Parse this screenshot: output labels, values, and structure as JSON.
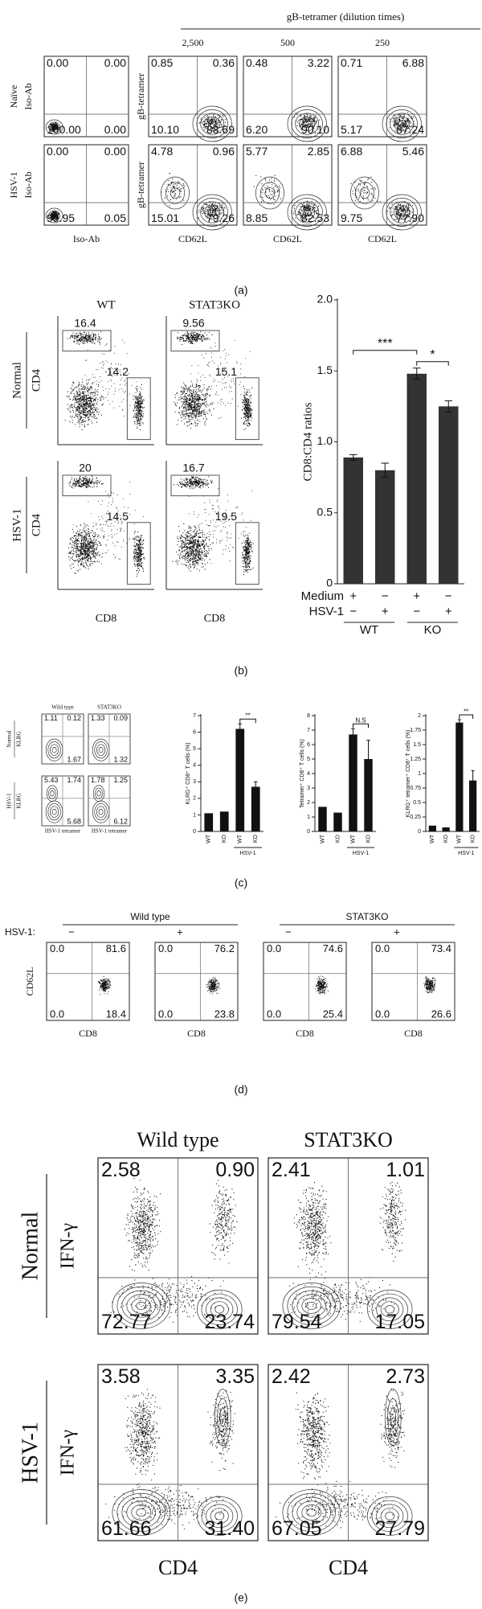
{
  "panel_a": {
    "header": "gB-tetramer (dilution times)",
    "dilutions": [
      "2,500",
      "500",
      "250"
    ],
    "row_labels": [
      [
        "Naïve",
        "Iso-Ab"
      ],
      [
        "HSV-1",
        "Iso-Ab"
      ]
    ],
    "y_labels": [
      "gB-tetramer",
      "gB-tetramer"
    ],
    "x_labels": [
      "Iso-Ab",
      "CD62L",
      "CD62L",
      "CD62L"
    ],
    "plots": [
      [
        [
          "0.00",
          "0.00",
          "100.00",
          "0.00"
        ],
        [
          "0.85",
          "0.36",
          "10.10",
          "88.69"
        ],
        [
          "0.48",
          "3.22",
          "6.20",
          "90.10"
        ],
        [
          "0.71",
          "6.88",
          "5.17",
          "87.24"
        ]
      ],
      [
        [
          "0.00",
          "0.00",
          "99.95",
          "0.05"
        ],
        [
          "4.78",
          "0.96",
          "15.01",
          "79.26"
        ],
        [
          "5.77",
          "2.85",
          "8.85",
          "82.53"
        ],
        [
          "6.88",
          "5.46",
          "9.75",
          "77.90"
        ]
      ]
    ],
    "caption": "(a)"
  },
  "panel_b": {
    "columns": [
      "WT",
      "STAT3KO"
    ],
    "row_labels": [
      [
        "Normal",
        "CD4"
      ],
      [
        "HSV-1",
        "CD4"
      ]
    ],
    "x_labels": [
      "CD8",
      "CD8"
    ],
    "gates": [
      [
        [
          "16.4",
          "14.2"
        ],
        [
          "9.56",
          "15.1"
        ]
      ],
      [
        [
          "20",
          "14.5"
        ],
        [
          "16.7",
          "19.5"
        ]
      ]
    ],
    "caption": "(b)"
  },
  "panel_c": {
    "columns": [
      "Wild type",
      "STAT3KO"
    ],
    "row_labels": [
      [
        "Normal",
        "KLRG"
      ],
      [
        "HSV-1",
        "KLRG"
      ]
    ],
    "x_labels": [
      "HSV-1 tetramer",
      "HSV-1 tetramer"
    ],
    "plots": [
      [
        [
          "1.11",
          "0.12",
          "1.67"
        ],
        [
          "1.33",
          "0.09",
          "1.32"
        ]
      ],
      [
        [
          "5.43",
          "1.74",
          "5.68"
        ],
        [
          "1.78",
          "1.25",
          "6.12"
        ]
      ]
    ],
    "caption": "(c)"
  },
  "panel_d": {
    "prefix": "HSV-1:",
    "groups": [
      "Wild type",
      "STAT3KO"
    ],
    "signs": [
      "−",
      "+",
      "−",
      "+"
    ],
    "y_label": "CD62L",
    "x_labels": [
      "CD8",
      "CD8",
      "CD8",
      "CD8"
    ],
    "plots": [
      [
        "0.0",
        "81.6",
        "0.0",
        "18.4"
      ],
      [
        "0.0",
        "76.2",
        "0.0",
        "23.8"
      ],
      [
        "0.0",
        "74.6",
        "0.0",
        "25.4"
      ],
      [
        "0.0",
        "73.4",
        "0.0",
        "26.6"
      ]
    ],
    "caption": "(d)"
  },
  "panel_e": {
    "columns": [
      "Wild type",
      "STAT3KO"
    ],
    "row_labels": [
      [
        "Normal",
        "IFN-γ"
      ],
      [
        "HSV-1",
        "IFN-γ"
      ]
    ],
    "x_labels": [
      "CD4",
      "CD4"
    ],
    "plots": [
      [
        [
          "2.58",
          "0.90",
          "72.77",
          "23.74"
        ],
        [
          "2.41",
          "1.01",
          "79.54",
          "17.05"
        ]
      ],
      [
        [
          "3.58",
          "3.35",
          "61.66",
          "31.40"
        ],
        [
          "2.42",
          "2.73",
          "67.05",
          "27.79"
        ]
      ]
    ],
    "caption": "(e)"
  },
  "chart_data": [
    {
      "type": "bar",
      "y_label": "CD8:CD4 ratios",
      "values": [
        0.89,
        0.8,
        1.48,
        1.25
      ],
      "errors": [
        0.02,
        0.05,
        0.04,
        0.04
      ],
      "color": "#333333",
      "ylim": [
        0,
        2
      ],
      "yticks": [
        0,
        0.5,
        {
          "value": 1,
          "label": "1.0"
        },
        1.5,
        {
          "value": 2,
          "label": "2.0"
        }
      ],
      "annotations": [
        "***",
        "*"
      ],
      "rows": [
        {
          "name": "Medium",
          "signs": [
            "+",
            "−",
            "+",
            "−"
          ]
        },
        {
          "name": "HSV-1",
          "signs": [
            "−",
            "+",
            "−",
            "+"
          ]
        }
      ],
      "groups": [
        "WT",
        "KO"
      ]
    },
    {
      "type": "bar",
      "y_label": "KLRG⁺ CD8⁺ T cells (%)",
      "categories": [
        "WT",
        "KO",
        "WT",
        "KO"
      ],
      "group": "HSV-1",
      "values": [
        1.1,
        1.2,
        6.2,
        2.7
      ],
      "errors": [
        null,
        null,
        0.3,
        0.3
      ],
      "color": "#111111",
      "ylim": [
        0,
        7
      ],
      "yticks": [
        0,
        1,
        2,
        3,
        4,
        5,
        6,
        7
      ],
      "annotations": [
        "**"
      ]
    },
    {
      "type": "bar",
      "y_label": "Tetramer⁺ CD8⁺ T cells (%)",
      "categories": [
        "WT",
        "KO",
        "WT",
        "KO"
      ],
      "group": "HSV-1",
      "values": [
        1.7,
        1.3,
        6.7,
        5.0
      ],
      "errors": [
        null,
        null,
        0.4,
        1.3
      ],
      "color": "#111111",
      "ylim": [
        0,
        8
      ],
      "yticks": [
        0,
        1,
        2,
        3,
        4,
        5,
        6,
        7,
        8
      ],
      "annotations": [
        "N.S"
      ]
    },
    {
      "type": "bar",
      "y_label": "KLRG⁺ tetramer⁺ CD8⁺ T cells (%)",
      "categories": [
        "WT",
        "KO",
        "WT",
        "KO"
      ],
      "group": "HSV-1",
      "values": [
        0.1,
        0.07,
        1.88,
        0.88
      ],
      "errors": [
        null,
        null,
        0.05,
        0.17
      ],
      "color": "#111111",
      "ylim": [
        0,
        2
      ],
      "yticks": [
        0,
        0.25,
        0.5,
        0.75,
        1,
        1.25,
        1.5,
        1.75,
        2
      ],
      "annotations": [
        "**"
      ]
    }
  ]
}
